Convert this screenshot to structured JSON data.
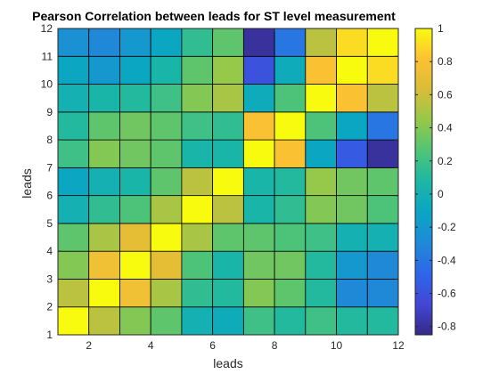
{
  "chart_data": {
    "type": "heatmap",
    "title": "Pearson Correlation between leads for ST level measurement",
    "xlabel": "leads",
    "ylabel": "leads",
    "x_ticks": [
      "2",
      "4",
      "6",
      "8",
      "10",
      "12"
    ],
    "y_ticks": [
      "1",
      "2",
      "3",
      "4",
      "5",
      "6",
      "7",
      "8",
      "9",
      "10",
      "11",
      "12"
    ],
    "xlim": [
      1,
      12
    ],
    "ylim": [
      1,
      12
    ],
    "colorbar": {
      "min": -0.85,
      "max": 1,
      "ticks": [
        "1",
        "0.8",
        "0.6",
        "0.4",
        "0.2",
        "0",
        "-0.2",
        "-0.4",
        "-0.6",
        "-0.8"
      ],
      "tick_values": [
        1,
        0.8,
        0.6,
        0.4,
        0.2,
        0,
        -0.2,
        -0.4,
        -0.6,
        -0.8
      ],
      "colormap": "parula"
    },
    "grid": true,
    "matrix_rows_from_bottom": [
      [
        1.0,
        0.55,
        0.4,
        0.3,
        0.0,
        -0.05,
        0.2,
        0.1,
        0.2,
        0.1,
        0.1
      ],
      [
        0.55,
        1.0,
        0.75,
        0.5,
        0.15,
        0.1,
        0.4,
        0.3,
        0.1,
        -0.3,
        -0.3
      ],
      [
        0.4,
        0.75,
        1.0,
        0.7,
        0.25,
        0.05,
        0.35,
        0.35,
        0.1,
        -0.2,
        -0.3
      ],
      [
        0.3,
        0.5,
        0.7,
        1.0,
        0.5,
        0.3,
        0.3,
        0.25,
        0.2,
        0.0,
        0.0
      ],
      [
        0.0,
        0.15,
        0.25,
        0.5,
        1.0,
        0.55,
        0.05,
        0.15,
        0.4,
        0.35,
        0.25
      ],
      [
        -0.1,
        0.0,
        0.05,
        0.3,
        0.55,
        1.0,
        0.05,
        0.1,
        0.45,
        0.35,
        0.3
      ],
      [
        0.2,
        0.4,
        0.35,
        0.3,
        0.05,
        0.05,
        1.0,
        0.8,
        -0.1,
        -0.55,
        -0.8
      ],
      [
        0.1,
        0.3,
        0.35,
        0.3,
        0.2,
        0.15,
        0.8,
        1.0,
        0.25,
        -0.1,
        -0.4
      ],
      [
        0.0,
        0.05,
        0.1,
        0.2,
        0.4,
        0.5,
        -0.05,
        0.25,
        1.0,
        0.8,
        0.55
      ],
      [
        -0.1,
        -0.2,
        -0.1,
        0.05,
        0.3,
        0.45,
        -0.6,
        -0.05,
        0.8,
        1.0,
        0.9
      ],
      [
        -0.25,
        -0.3,
        -0.2,
        -0.1,
        0.15,
        0.3,
        -0.8,
        -0.4,
        0.55,
        0.9,
        1.0
      ]
    ]
  }
}
